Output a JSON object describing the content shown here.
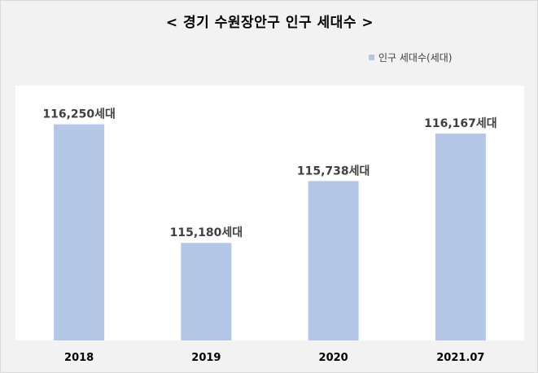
{
  "chart_data": {
    "type": "bar",
    "title": "< 경기 수원장안구 인구 세대수 >",
    "categories": [
      "2018",
      "2019",
      "2020",
      "2021.07"
    ],
    "series": [
      {
        "name": "인구 세대수(세대)",
        "values": [
          116250,
          115180,
          115738,
          116167
        ],
        "data_labels": [
          "116,250세대",
          "115,180세대",
          "115,738세대",
          "116,167세대"
        ]
      }
    ],
    "ylim": [
      114300,
      116600
    ],
    "grid": false,
    "legend": "top-right",
    "colors": {
      "bar": "#b4c7e7",
      "plot_background": "#ffffff",
      "chart_background": "#f2f2f2"
    }
  }
}
